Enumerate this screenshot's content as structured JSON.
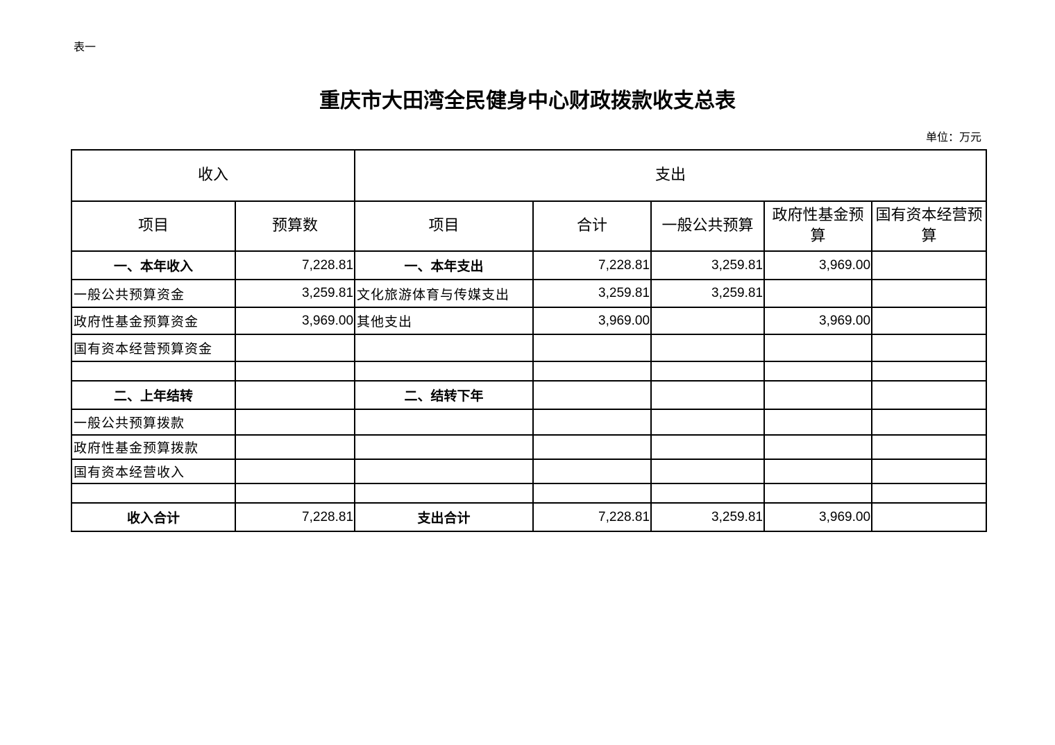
{
  "doc": {
    "tag": "表一",
    "title": "重庆市大田湾全民健身中心财政拨款收支总表",
    "unit": "单位：万元"
  },
  "table": {
    "group_headers": {
      "income": "收入",
      "expense": "支出"
    },
    "columns": [
      "项目",
      "预算数",
      "项目",
      "合计",
      "一般公共预算",
      "政府性基金预算",
      "国有资本经营预算"
    ],
    "rows": [
      {
        "type": "section",
        "cells": [
          "一、本年收入",
          "7,228.81",
          "一、本年支出",
          "7,228.81",
          "3,259.81",
          "3,969.00",
          ""
        ]
      },
      {
        "type": "item",
        "cells": [
          "一般公共预算资金",
          "3,259.81",
          "文化旅游体育与传媒支出",
          "3,259.81",
          "3,259.81",
          "",
          ""
        ]
      },
      {
        "type": "item",
        "cells": [
          "政府性基金预算资金",
          "3,969.00",
          "其他支出",
          "3,969.00",
          "",
          "3,969.00",
          ""
        ]
      },
      {
        "type": "item",
        "cells": [
          "国有资本经营预算资金",
          "",
          "",
          "",
          "",
          "",
          ""
        ]
      },
      {
        "type": "blank",
        "cells": [
          "",
          "",
          "",
          "",
          "",
          "",
          ""
        ]
      },
      {
        "type": "section",
        "cells": [
          "二、上年结转",
          "",
          "二、结转下年",
          "",
          "",
          "",
          ""
        ]
      },
      {
        "type": "item",
        "cells": [
          "一般公共预算拨款",
          "",
          "",
          "",
          "",
          "",
          ""
        ]
      },
      {
        "type": "item",
        "cells": [
          "政府性基金预算拨款",
          "",
          "",
          "",
          "",
          "",
          ""
        ]
      },
      {
        "type": "item",
        "cells": [
          "国有资本经营收入",
          "",
          "",
          "",
          "",
          "",
          ""
        ]
      },
      {
        "type": "blank",
        "cells": [
          "",
          "",
          "",
          "",
          "",
          "",
          ""
        ]
      },
      {
        "type": "section",
        "cells": [
          "收入合计",
          "7,228.81",
          "支出合计",
          "7,228.81",
          "3,259.81",
          "3,969.00",
          ""
        ]
      }
    ]
  }
}
